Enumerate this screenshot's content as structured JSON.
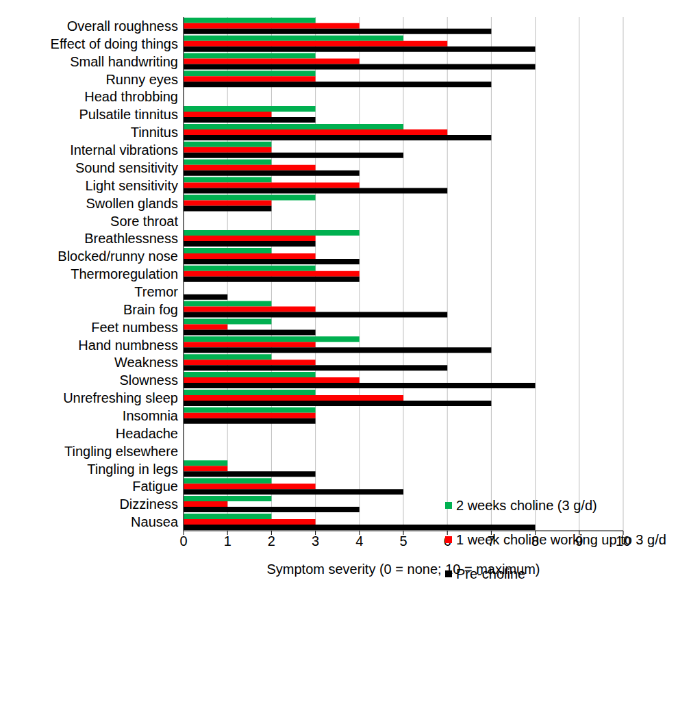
{
  "chart_data": {
    "type": "bar",
    "orientation": "horizontal",
    "grid": true,
    "legend": "lower right",
    "x_label": "Symptom severity (0 = none; 10 = maximum)",
    "categories": [
      "Overall roughness",
      "Effect of doing things",
      "Small handwriting",
      "Runny eyes",
      "Head throbbing",
      "Pulsatile tinnitus",
      "Tinnitus",
      "Internal vibrations",
      "Sound sensitivity",
      "Light sensitivity",
      "Swollen glands",
      "Sore throat",
      "Breathlessness",
      "Blocked/runny nose",
      "Thermoregulation",
      "Tremor",
      "Brain fog",
      "Feet numbess",
      "Hand numbness",
      "Weakness",
      "Slowness",
      "Unrefreshing sleep",
      "Insomnia",
      "Headache",
      "Tingling elsewhere",
      "Tingling in legs",
      "Fatigue",
      "Dizziness",
      "Nausea"
    ],
    "series": [
      {
        "name": "2 weeks choline (3 g/d)",
        "color": "#00B050",
        "values": [
          3,
          5,
          3,
          3,
          0,
          3,
          5,
          2,
          2,
          2,
          3,
          0,
          4,
          2,
          3,
          0,
          2,
          2,
          4,
          2,
          3,
          3,
          3,
          0,
          0,
          1,
          2,
          2,
          2
        ]
      },
      {
        "name": "1 week choline working up to 3 g/d",
        "color": "#FF0000",
        "values": [
          4,
          6,
          4,
          3,
          0,
          2,
          6,
          2,
          3,
          4,
          2,
          0,
          3,
          3,
          4,
          0,
          3,
          1,
          3,
          3,
          4,
          5,
          3,
          0,
          0,
          1,
          3,
          1,
          3
        ]
      },
      {
        "name": "Pre-choline",
        "color": "#000000",
        "values": [
          7,
          8,
          8,
          7,
          0,
          3,
          7,
          5,
          4,
          6,
          2,
          0,
          3,
          4,
          4,
          1,
          6,
          3,
          7,
          6,
          8,
          7,
          3,
          0,
          0,
          3,
          5,
          4,
          8
        ]
      }
    ],
    "xlim": [
      0,
      10
    ],
    "xticks": [
      0,
      1,
      2,
      3,
      4,
      5,
      6,
      7,
      8,
      9,
      10
    ]
  }
}
